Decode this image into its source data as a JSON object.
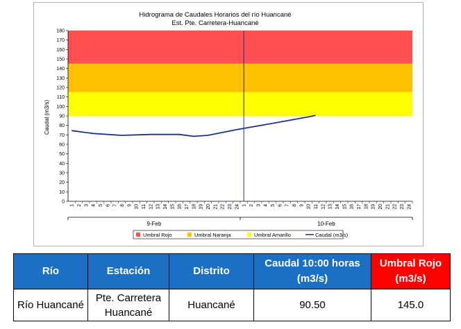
{
  "chart": {
    "title_line1": "Hidrograma de Caudales Horarios del río Huancané",
    "title_line2": "Est. Pte. Carretera-Huancané"
  },
  "chart_data": {
    "type": "line",
    "title": "Hidrograma de Caudales Horarios del río Huancané",
    "subtitle": "Est. Pte. Carretera-Huancané",
    "ylabel": "Caudal  (m3/s)",
    "xlabel": "",
    "ylim": [
      0,
      180
    ],
    "yticks": [
      0,
      10,
      20,
      30,
      40,
      50,
      60,
      70,
      80,
      90,
      100,
      110,
      120,
      130,
      140,
      150,
      160,
      170,
      180
    ],
    "x_hour_labels": [
      "1",
      "2",
      "3",
      "4",
      "5",
      "6",
      "7",
      "8",
      "9",
      "10",
      "11",
      "12",
      "13",
      "14",
      "15",
      "16",
      "17",
      "18",
      "19",
      "20",
      "21",
      "22",
      "23",
      "24",
      "1",
      "2",
      "3",
      "4",
      "5",
      "6",
      "7",
      "8",
      "9",
      "10",
      "11",
      "12",
      "13",
      "14",
      "15",
      "16",
      "17",
      "18",
      "19",
      "20",
      "21",
      "22",
      "23",
      "24"
    ],
    "day_labels": [
      "9-Feb",
      "10-Feb"
    ],
    "grid": false,
    "legend_position": "bottom",
    "thresholds": [
      {
        "name": "Umbral Rojo",
        "from": 145,
        "to": 180,
        "color": "#ff5050"
      },
      {
        "name": "Umbral Naranja",
        "from": 115,
        "to": 145,
        "color": "#ffc000"
      },
      {
        "name": "Umbral Amarillo",
        "from": 90,
        "to": 115,
        "color": "#ffff00"
      }
    ],
    "series": [
      {
        "name": "Caudal (m3/s)",
        "color": "#1f2f8f",
        "x": [
          1,
          4,
          8,
          12,
          16,
          18,
          20,
          24,
          27,
          30,
          34,
          35
        ],
        "y": [
          74.5,
          71.5,
          69.5,
          70.5,
          70.5,
          68.5,
          69.5,
          75.5,
          79.5,
          83.5,
          89,
          90.5
        ]
      }
    ],
    "marker_line_at_hour": 24.5
  },
  "legend": [
    {
      "label": "Umbral Rojo",
      "color": "#ff5050",
      "type": "box"
    },
    {
      "label": "Umbral Naranja",
      "color": "#ffc000",
      "type": "box"
    },
    {
      "label": "Umbral Amarillo",
      "color": "#ffff00",
      "type": "box"
    },
    {
      "label": "Caudal (m3/s)",
      "color": "#1f2f8f",
      "type": "line"
    }
  ],
  "table": {
    "headers": [
      "Río",
      "Estación",
      "Distrito",
      "Caudal  10:00 horas (m3/s)",
      "Umbral Rojo (m3/s)"
    ],
    "row": [
      "Río Huancané",
      "Pte. Carretera Huancané",
      "Huancané",
      "90.50",
      "145.0"
    ]
  }
}
